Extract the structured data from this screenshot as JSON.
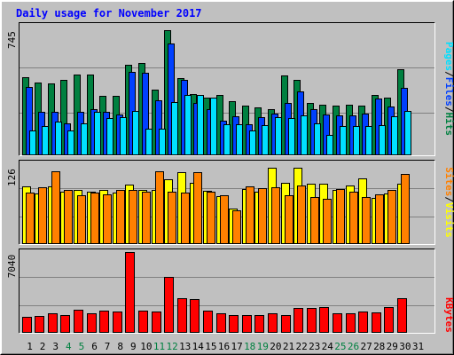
{
  "title": "Daily usage for November 2017",
  "colors": {
    "background": "#c0c0c0",
    "title": "#0000ff",
    "hits": "#008040",
    "files": "#0040ff",
    "pages": "#00e0ff",
    "visits": "#ffff00",
    "sites": "#ff8000",
    "kbytes": "#ff0000",
    "weekend_day_label": "#008040",
    "weekday_day_label": "#000000"
  },
  "legend": {
    "hits": "Hits",
    "files": "Files",
    "pages": "Pages",
    "visits": "Visits",
    "sites": "Sites",
    "kbytes": "KBytes",
    "separator": "/"
  },
  "chart_data": {
    "type": "bar",
    "title": "Daily usage for November 2017",
    "categories": [
      "1",
      "2",
      "3",
      "4",
      "5",
      "6",
      "7",
      "8",
      "9",
      "10",
      "11",
      "12",
      "13",
      "14",
      "15",
      "16",
      "17",
      "18",
      "19",
      "20",
      "21",
      "22",
      "23",
      "24",
      "25",
      "26",
      "27",
      "28",
      "29",
      "30",
      "31"
    ],
    "weekend_days": [
      "4",
      "5",
      "11",
      "12",
      "18",
      "19",
      "25",
      "26"
    ],
    "panels": [
      {
        "id": "top",
        "axis_max_label": "745",
        "ylim": [
          0,
          745
        ],
        "series": [
          {
            "name": "Hits",
            "color": "#008040",
            "values": [
              448,
              420,
              412,
              435,
              463,
              463,
              340,
              340,
              518,
              533,
              376,
              721,
              446,
              354,
              332,
              349,
              313,
              287,
              275,
              264,
              457,
              436,
              299,
              292,
              287,
              289,
              287,
              345,
              332,
              494,
              null
            ]
          },
          {
            "name": "Files",
            "color": "#0040ff",
            "values": [
              391,
              250,
              249,
              184,
              249,
              264,
              249,
              235,
              478,
              476,
              318,
              641,
              432,
              302,
              267,
              199,
              225,
              181,
              220,
              238,
              299,
              368,
              267,
              235,
              231,
              232,
              238,
              326,
              281,
              387,
              null
            ]
          },
          {
            "name": "Pages",
            "color": "#00e0ff",
            "values": [
              144,
              168,
              195,
              144,
              183,
              249,
              213,
              220,
              254,
              151,
              151,
              308,
              345,
              345,
              330,
              180,
              178,
              141,
              173,
              218,
              213,
              228,
              185,
              116,
              166,
              170,
              170,
              175,
              222,
              254,
              null
            ]
          }
        ]
      },
      {
        "id": "middle",
        "axis_max_label": "126",
        "ylim": [
          0,
          126
        ],
        "series": [
          {
            "name": "Visits",
            "color": "#ffff00",
            "values": [
              90,
              79,
              90,
              81,
              84,
              81,
              84,
              80,
              93,
              84,
              84,
              101,
              112,
              96,
              83,
              75,
              56,
              86,
              81,
              119,
              95,
              119,
              94,
              94,
              84,
              92,
              102,
              72,
              79,
              94,
              null
            ]
          },
          {
            "name": "Sites",
            "color": "#ff8000",
            "values": [
              80,
              89,
              113,
              85,
              76,
              80,
              78,
              84,
              84,
              81,
              113,
              81,
              80,
              112,
              81,
              76,
              53,
              90,
              87,
              88,
              76,
              91,
              73,
              70,
              86,
              81,
              74,
              77,
              84,
              109,
              null
            ]
          }
        ]
      },
      {
        "id": "bottom",
        "axis_max_label": "7040",
        "ylim": [
          0,
          7040
        ],
        "series": [
          {
            "name": "KBytes",
            "color": "#ff0000",
            "values": [
              1360,
              1460,
              1720,
              1560,
              2050,
              1710,
              1920,
              1860,
              7040,
              1970,
              1890,
              4840,
              2980,
              2940,
              1970,
              1710,
              1550,
              1550,
              1560,
              1720,
              1520,
              2130,
              2130,
              2210,
              1700,
              1710,
              1850,
              1760,
              2280,
              3030,
              null
            ]
          }
        ]
      }
    ]
  }
}
